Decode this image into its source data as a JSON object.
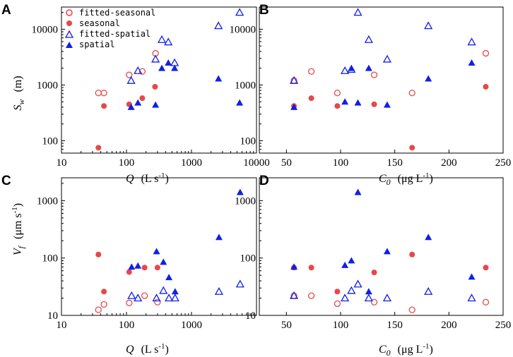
{
  "colors": {
    "seasonal": "#e8474a",
    "spatial": "#1020e6",
    "axis": "#000000"
  },
  "legend": [
    {
      "label": "fitted-seasonal",
      "series": "fitted-seasonal"
    },
    {
      "label": "seasonal",
      "series": "seasonal"
    },
    {
      "label": "fitted-spatial",
      "series": "fitted-spatial"
    },
    {
      "label": "spatial",
      "series": "spatial"
    }
  ],
  "chart_data": [
    {
      "panel": "A",
      "type": "scatter",
      "xscale": "log",
      "yscale": "log",
      "xlim": [
        10,
        10000
      ],
      "ylim": [
        60,
        25000
      ],
      "xticks": [
        10,
        100,
        1000,
        10000
      ],
      "xtick_labels": [
        "10",
        "100",
        "1000",
        "10000"
      ],
      "yticks": [
        100,
        1000,
        10000
      ],
      "ytick_labels": [
        "100",
        "1000",
        "10000"
      ],
      "xlabel_var": "Q",
      "xlabel_units": "(L s",
      "xlabel_sup": "-1",
      "xlabel_close": ")",
      "ylabel_var": "S",
      "ylabel_sub": "w",
      "ylabel_units": "(m)",
      "legend_position": "top-left",
      "series": [
        {
          "name": "fitted-seasonal",
          "x": [
            37,
            45,
            110,
            175,
            280
          ],
          "y": [
            720,
            720,
            1520,
            1750,
            3700
          ]
        },
        {
          "name": "seasonal",
          "x": [
            37,
            45,
            110,
            175,
            275
          ],
          "y": [
            75,
            420,
            450,
            580,
            930
          ]
        },
        {
          "name": "fitted-spatial",
          "x": [
            118,
            150,
            280,
            350,
            440,
            550,
            2600,
            5500
          ],
          "y": [
            1200,
            1800,
            2900,
            6500,
            5900,
            2500,
            11500,
            20000
          ]
        },
        {
          "name": "spatial",
          "x": [
            118,
            150,
            280,
            350,
            440,
            550,
            2600,
            5500
          ],
          "y": [
            400,
            480,
            440,
            2000,
            2500,
            2000,
            1300,
            480
          ]
        }
      ]
    },
    {
      "panel": "B",
      "type": "scatter",
      "xscale": "linear",
      "yscale": "log",
      "xlim": [
        25,
        250
      ],
      "ylim": [
        60,
        25000
      ],
      "xticks": [
        50,
        100,
        150,
        200,
        250
      ],
      "xtick_labels": [
        "50",
        "100",
        "150",
        "200",
        "250"
      ],
      "yticks": [
        100,
        1000,
        10000
      ],
      "ytick_labels": [
        "100",
        "1000",
        "10000"
      ],
      "xlabel_var": "C",
      "xlabel_sub": "0",
      "xlabel_units": "(μg L",
      "xlabel_sup": "-1",
      "xlabel_close": ")",
      "series": [
        {
          "name": "fitted-seasonal",
          "x": [
            57,
            73,
            97,
            131,
            166,
            234
          ],
          "y": [
            1200,
            1750,
            720,
            1520,
            720,
            3700
          ]
        },
        {
          "name": "seasonal",
          "x": [
            57,
            73,
            97,
            131,
            166,
            234
          ],
          "y": [
            420,
            580,
            420,
            450,
            75,
            930
          ]
        },
        {
          "name": "fitted-spatial",
          "x": [
            57,
            104,
            110,
            116,
            126,
            143,
            181,
            221
          ],
          "y": [
            1200,
            1800,
            1900,
            20000,
            6500,
            2900,
            11500,
            5900
          ]
        },
        {
          "name": "spatial",
          "x": [
            57,
            104,
            110,
            116,
            126,
            143,
            181,
            221
          ],
          "y": [
            400,
            500,
            2000,
            480,
            2000,
            440,
            1300,
            2500
          ]
        }
      ]
    },
    {
      "panel": "C",
      "type": "scatter",
      "xscale": "log",
      "yscale": "log",
      "xlim": [
        10,
        10000
      ],
      "ylim": [
        10,
        2500
      ],
      "xticks": [
        10,
        100,
        1000
      ],
      "xtick_labels": [
        "10",
        "100",
        "1000"
      ],
      "yticks": [
        10,
        100,
        1000
      ],
      "ytick_labels": [
        "10",
        "100",
        "1000"
      ],
      "xlabel_var": "Q",
      "xlabel_units": "(L s",
      "xlabel_sup": "-1",
      "xlabel_close": ")",
      "ylabel_var": "V",
      "ylabel_sub": "f",
      "ylabel_units": "(μm s",
      "ylabel_sup": "-1",
      "ylabel_close": ")",
      "series": [
        {
          "name": "fitted-seasonal",
          "x": [
            37,
            45,
            110,
            190,
            300
          ],
          "y": [
            12.5,
            15.5,
            16.5,
            22,
            17
          ]
        },
        {
          "name": "seasonal",
          "x": [
            37,
            45,
            110,
            190,
            300
          ],
          "y": [
            115,
            26,
            57,
            68,
            68
          ]
        },
        {
          "name": "fitted-spatial",
          "x": [
            120,
            150,
            290,
            370,
            450,
            560,
            2650,
            5600
          ],
          "y": [
            22,
            20,
            20,
            27,
            20,
            20,
            26,
            35
          ]
        },
        {
          "name": "spatial",
          "x": [
            120,
            150,
            290,
            370,
            450,
            560,
            2650,
            5600
          ],
          "y": [
            70,
            73,
            130,
            85,
            46,
            26,
            230,
            1400
          ]
        }
      ]
    },
    {
      "panel": "D",
      "type": "scatter",
      "xscale": "linear",
      "yscale": "log",
      "xlim": [
        25,
        250
      ],
      "ylim": [
        10,
        2500
      ],
      "xticks": [
        50,
        100,
        150,
        200,
        250
      ],
      "xtick_labels": [
        "50",
        "100",
        "150",
        "200",
        "250"
      ],
      "yticks": [
        10,
        100,
        1000
      ],
      "ytick_labels": [
        "10",
        "100",
        "1000"
      ],
      "xlabel_var": "C",
      "xlabel_sub": "0",
      "xlabel_units": "(μg L",
      "xlabel_sup": "-1",
      "xlabel_close": ")",
      "series": [
        {
          "name": "fitted-seasonal",
          "x": [
            57,
            73,
            97,
            131,
            166,
            234
          ],
          "y": [
            22,
            22,
            16,
            17,
            12.5,
            17
          ]
        },
        {
          "name": "seasonal",
          "x": [
            57,
            73,
            97,
            131,
            166,
            234
          ],
          "y": [
            68,
            68,
            26,
            56,
            115,
            68
          ]
        },
        {
          "name": "fitted-spatial",
          "x": [
            57,
            104,
            110,
            116,
            126,
            143,
            181,
            221
          ],
          "y": [
            22,
            20,
            27,
            35,
            20,
            20,
            26,
            20
          ]
        },
        {
          "name": "spatial",
          "x": [
            57,
            104,
            110,
            116,
            126,
            143,
            181,
            221
          ],
          "y": [
            70,
            75,
            90,
            1400,
            26,
            130,
            230,
            47
          ]
        }
      ]
    }
  ]
}
